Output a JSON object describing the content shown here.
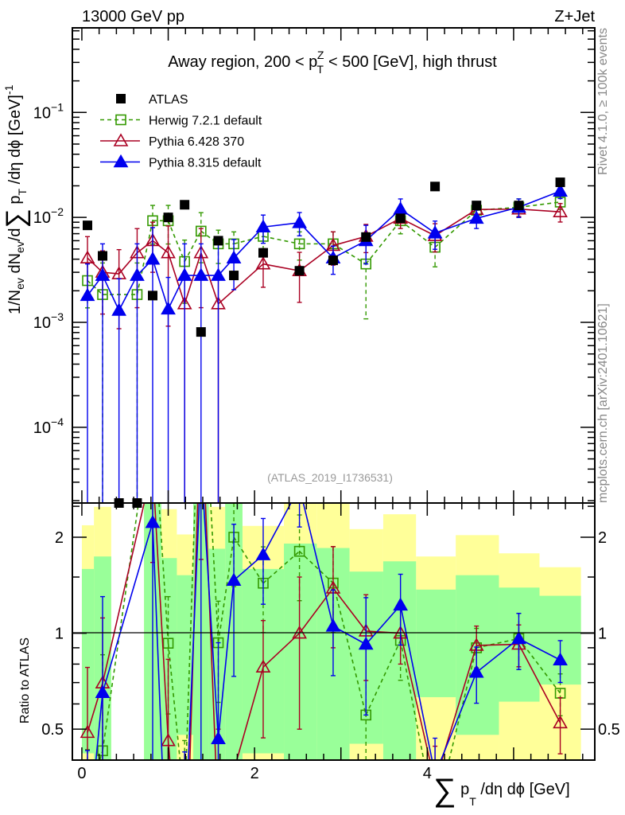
{
  "header": {
    "left": "13000 GeV pp",
    "right": "Z+Jet"
  },
  "title": {
    "pre": "Away region, 200 < p",
    "sub": "T",
    "sup": "Z",
    "post": " < 500 [GeV], high thrust"
  },
  "side_texts": {
    "rivet": "Rivet 4.1.0, ≥ 100k events",
    "mcplots": "mcplots.cern.ch [arXiv:2401.10621]"
  },
  "watermark": "(ATLAS_2019_I1736531)",
  "ylabel": {
    "a": "1/N",
    "b": "ev",
    "c": " dN",
    "d": "ev",
    "e": "/d",
    "sum": "∑",
    "f": " p",
    "g": "T",
    "h": " /dη dϕ  [GeV]",
    "sup": "-1"
  },
  "ratio_ylabel": "Ratio to ATLAS",
  "xlabel": {
    "sum": "∑",
    "p": " p",
    "sub": "T",
    "rest": " /dη dϕ [GeV]"
  },
  "chart_data": {
    "type": "scatter",
    "title": "Away region, 200 < pT^Z < 500 [GeV], high thrust",
    "xlim": [
      -0.11,
      5.94
    ],
    "ylim": [
      1.9e-05,
      0.64
    ],
    "yscale": "log",
    "ratio_ylim": [
      0.4,
      2.56
    ],
    "x_ticks": [
      {
        "v": 0,
        "label": "0"
      },
      {
        "v": 2,
        "label": "2"
      },
      {
        "v": 4,
        "label": "4"
      }
    ],
    "y_ticks": [
      {
        "v": 0.1,
        "base": "10",
        "exp": "−1"
      },
      {
        "v": 0.01,
        "base": "10",
        "exp": "−2"
      },
      {
        "v": 0.001,
        "base": "10",
        "exp": "−3"
      },
      {
        "v": 0.0001,
        "base": "10",
        "exp": "−4"
      }
    ],
    "ratio_ticks": [
      {
        "v": 2,
        "label": "2"
      },
      {
        "v": 1,
        "label": "1"
      },
      {
        "v": 0.5,
        "label": "0.5"
      }
    ],
    "x": [
      0.065,
      0.24,
      0.43,
      0.64,
      0.82,
      1.0,
      1.19,
      1.38,
      1.58,
      1.76,
      2.1,
      2.52,
      2.91,
      3.29,
      3.69,
      4.09,
      4.57,
      5.06,
      5.54
    ],
    "bin_edges": [
      0,
      0.14,
      0.34,
      0.53,
      0.72,
      0.92,
      1.1,
      1.29,
      1.47,
      1.66,
      1.86,
      2.34,
      2.72,
      3.1,
      3.49,
      3.87,
      4.33,
      4.83,
      5.3,
      5.78
    ],
    "band_inner": [
      [
        0.42,
        1.59
      ],
      [
        0.3,
        1.74
      ],
      null,
      null,
      [
        0.3,
        3
      ],
      [
        0.3,
        1.72
      ],
      [
        0.48,
        1.52
      ],
      [
        0.3,
        3
      ],
      [
        0.3,
        1.84
      ],
      [
        0.3,
        3
      ],
      [
        0.42,
        1.59
      ],
      [
        0.3,
        1.91
      ],
      [
        0.3,
        1.85
      ],
      [
        0.45,
        1.56
      ],
      [
        0.3,
        1.68
      ],
      [
        0.63,
        1.37
      ],
      [
        0.48,
        1.52
      ],
      [
        0.61,
        1.39
      ],
      [
        0.69,
        1.31
      ]
    ],
    "band_outer": [
      [
        0.3,
        2.18
      ],
      [
        0.2,
        2.49
      ],
      null,
      null,
      [
        0.2,
        3
      ],
      [
        0.2,
        2.45
      ],
      [
        0.3,
        2.04
      ],
      [
        0.2,
        3
      ],
      [
        0.2,
        2.49
      ],
      [
        0.2,
        3
      ],
      [
        0.3,
        2.17
      ],
      [
        0.2,
        3
      ],
      [
        0.2,
        3
      ],
      [
        0.3,
        2.12
      ],
      [
        0.2,
        2.36
      ],
      [
        0.3,
        1.74
      ],
      [
        0.3,
        2.03
      ],
      [
        0.3,
        1.78
      ],
      [
        0.3,
        1.61
      ]
    ],
    "series": [
      {
        "name": "ATLAS",
        "color": "#000000",
        "marker": "square-filled",
        "values": [
          0.0084,
          0.0043,
          1.5e-05,
          1.5e-05,
          0.0018,
          0.01,
          0.0132,
          0.00081,
          0.006,
          0.0028,
          0.0046,
          0.0031,
          0.0039,
          0.0065,
          0.0098,
          0.0197,
          0.013,
          0.013,
          0.0216
        ]
      },
      {
        "name": "Herwig 7.2.1 default",
        "color": "#339900",
        "marker": "square-open",
        "dashed": true,
        "values": [
          0.0025,
          0.00184,
          null,
          0.00184,
          0.0093,
          0.0093,
          0.0038,
          0.0074,
          0.0056,
          0.0056,
          0.0066,
          0.0056,
          0.0056,
          0.0036,
          0.0093,
          0.0052,
          0.0117,
          0.0125,
          0.014
        ],
        "rel_err": [
          0.45,
          1.0,
          null,
          1.0,
          0.4,
          0.4,
          0.6,
          0.5,
          0.35,
          0.3,
          0.3,
          0.3,
          0.3,
          0.7,
          0.25,
          0.35,
          0.15,
          0.2,
          0.15
        ]
      },
      {
        "name": "Pythia 6.428 370",
        "color": "#aa0022",
        "marker": "triangle-open",
        "values": [
          0.0041,
          0.003,
          0.0029,
          0.0046,
          0.006,
          0.0046,
          0.0015,
          0.0046,
          0.0015,
          null,
          0.0036,
          0.0031,
          0.0054,
          0.0066,
          0.0098,
          0.0067,
          0.0119,
          0.012,
          0.0113
        ],
        "rel_err": [
          0.6,
          0.6,
          0.7,
          0.7,
          0.5,
          0.8,
          1.0,
          0.7,
          1.0,
          null,
          0.4,
          0.5,
          0.35,
          0.3,
          0.2,
          0.3,
          0.15,
          0.15,
          0.2
        ]
      },
      {
        "name": "Pythia 8.315 default",
        "color": "#0000ee",
        "marker": "triangle-filled",
        "values": [
          0.0018,
          0.0028,
          0.0013,
          0.0028,
          0.004,
          0.00134,
          0.0028,
          0.0028,
          0.0028,
          0.0041,
          0.0081,
          0.0089,
          0.0041,
          0.006,
          0.012,
          0.0071,
          0.0098,
          0.0125,
          0.0178
        ],
        "rel_err": [
          1.0,
          1.0,
          1.0,
          1.0,
          1.0,
          1.0,
          1.0,
          1.0,
          1.0,
          0.5,
          0.3,
          0.25,
          0.3,
          0.4,
          0.25,
          0.3,
          0.2,
          0.2,
          0.15
        ]
      }
    ],
    "band_colors": {
      "inner": "#99ff99",
      "outer": "#ffff99"
    },
    "legend_position": "top-left"
  }
}
